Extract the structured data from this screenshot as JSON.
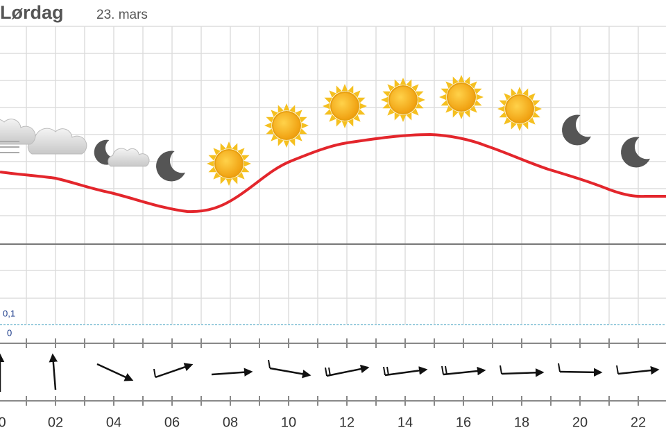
{
  "header": {
    "day": "Lørdag",
    "date": "23. mars"
  },
  "precipitation": {
    "labels": [
      "0,1",
      "0"
    ]
  },
  "time_axis": {
    "labels": [
      "0",
      "02",
      "04",
      "06",
      "08",
      "10",
      "12",
      "14",
      "16",
      "18",
      "20",
      "22"
    ]
  }
}
